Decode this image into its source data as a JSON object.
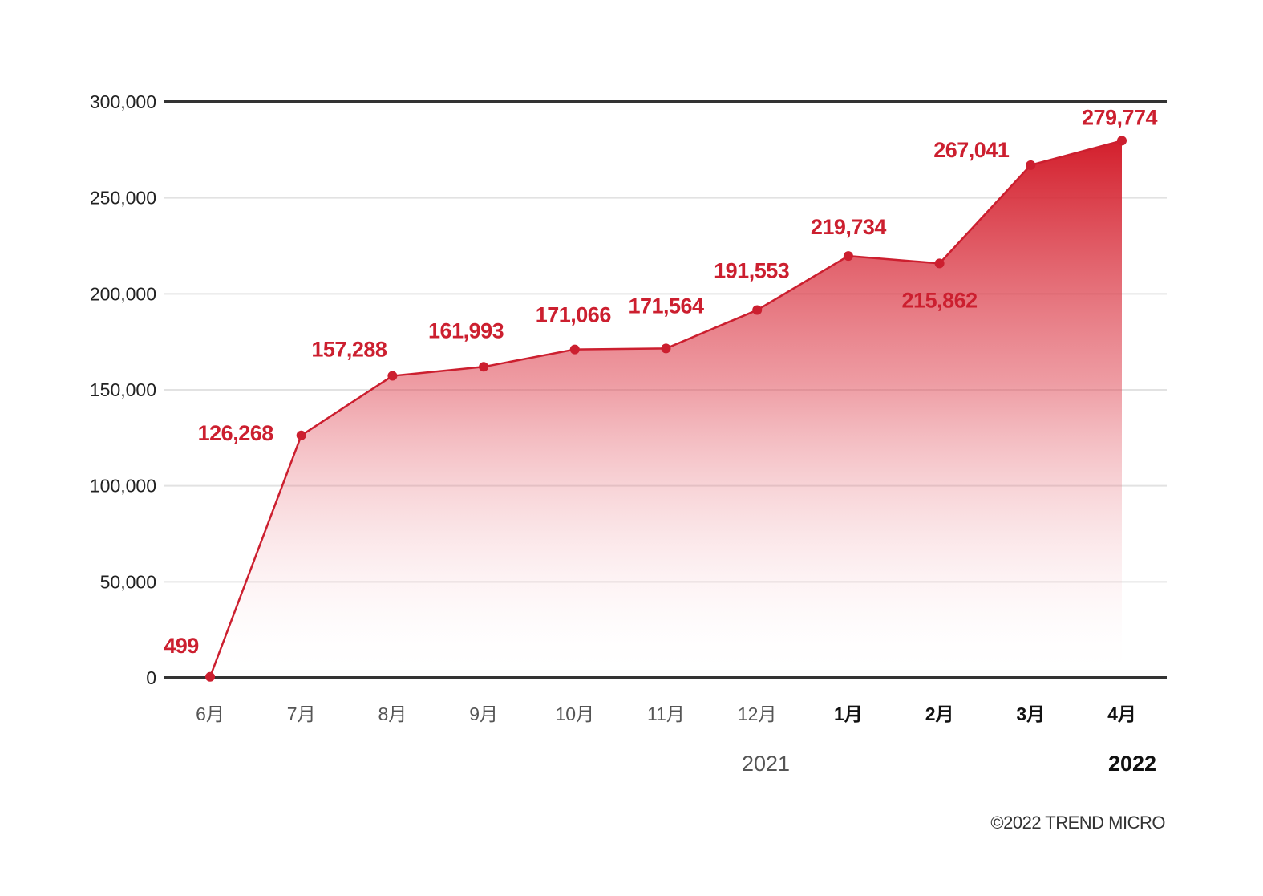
{
  "colors": {
    "accent": "#cc1f2f",
    "axis": "#333333",
    "grid": "#e2e2e2",
    "text": "#222222",
    "muted": "#555555"
  },
  "chart_data": {
    "type": "area",
    "categories": [
      "6月",
      "7月",
      "8月",
      "9月",
      "10月",
      "11月",
      "12月",
      "1月",
      "2月",
      "3月",
      "4月"
    ],
    "category_bold": [
      false,
      false,
      false,
      false,
      false,
      false,
      false,
      true,
      true,
      true,
      true
    ],
    "values": [
      499,
      126268,
      157288,
      161993,
      171066,
      171564,
      191553,
      219734,
      215862,
      267041,
      279774
    ],
    "data_labels": [
      "499",
      "126,268",
      "157,288",
      "161,993",
      "171,066",
      "171,564",
      "191,553",
      "219,734",
      "215,862",
      "267,041",
      "279,774"
    ],
    "year_labels": [
      {
        "text": "2021",
        "bold": false
      },
      {
        "text": "2022",
        "bold": true
      }
    ],
    "ylim": [
      0,
      300000
    ],
    "yticks": [
      0,
      50000,
      100000,
      150000,
      200000,
      250000,
      300000
    ],
    "ytick_labels": [
      "0",
      "50,000",
      "100,000",
      "150,000",
      "200,000",
      "250,000",
      "300,000"
    ],
    "grid": true,
    "title": "",
    "xlabel": "",
    "ylabel": ""
  },
  "footer": {
    "copyright": "©2022 TREND MICRO"
  }
}
